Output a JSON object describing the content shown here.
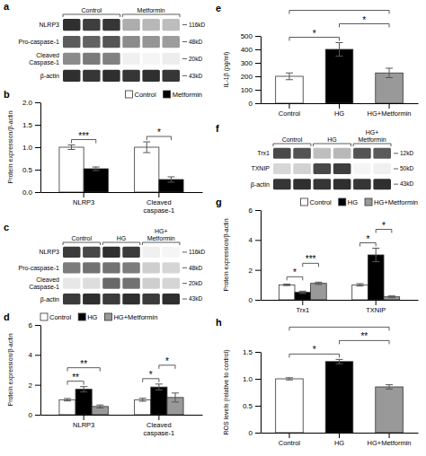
{
  "chart_data": [
    {
      "type": "heatmap",
      "title": "a",
      "groups": [
        {
          "name": "Control",
          "size": 3
        },
        {
          "name": "Metformin",
          "size": 3
        }
      ],
      "rows": [
        "NLRP3",
        "Pro-caspase-1",
        "Cleaved\nCaspase-1",
        "β-actin"
      ],
      "kd_labels": [
        "116kD",
        "48kD",
        "20kD",
        "43kD"
      ],
      "cells": [
        [
          0.82,
          0.78,
          0.8,
          0.45,
          0.42,
          0.4
        ],
        [
          0.7,
          0.68,
          0.72,
          0.55,
          0.52,
          0.5
        ],
        [
          0.55,
          0.6,
          0.58,
          0.18,
          0.15,
          0.2
        ],
        [
          0.82,
          0.8,
          0.82,
          0.8,
          0.82,
          0.8
        ]
      ]
    },
    {
      "type": "bar",
      "title": "b",
      "categories": [
        "NLRP3",
        "Cleaved\ncaspase-1"
      ],
      "series": [
        {
          "name": "Control",
          "color": "#FFFFFF",
          "values": [
            1.0,
            1.0
          ],
          "errors": [
            0.05,
            0.12
          ]
        },
        {
          "name": "Metformin",
          "color": "#000000",
          "values": [
            0.52,
            0.28
          ],
          "errors": [
            0.04,
            0.06
          ]
        }
      ],
      "ylabel": "Protein expression/β-actin",
      "ylim": [
        0,
        2.0
      ],
      "yticks": [
        {
          "value": 0,
          "label": "0.0"
        },
        0.5,
        {
          "value": 1,
          "label": "1.0"
        },
        1.5,
        {
          "value": 2,
          "label": "2.0"
        }
      ],
      "legend": "upper right",
      "annotations": [
        {
          "text": "***",
          "category": "NLRP3",
          "between": [
            "Control",
            "Metformin"
          ]
        },
        {
          "text": "*",
          "category": "Cleaved\ncaspase-1",
          "between": [
            "Control",
            "Metformin"
          ]
        }
      ]
    },
    {
      "type": "heatmap",
      "title": "c",
      "groups": [
        {
          "name": "Control",
          "size": 2
        },
        {
          "name": "HG",
          "size": 2
        },
        {
          "name": "HG+\nMetformin",
          "size": 2
        }
      ],
      "rows": [
        "NLRP3",
        "Pro-caspase-1",
        "Cleaved\nCaspase-1",
        "β-actin"
      ],
      "kd_labels": [
        "116kD",
        "48kD",
        "20kD",
        "43kD"
      ],
      "cells": [
        [
          0.8,
          0.78,
          0.82,
          0.8,
          0.42,
          0.4
        ],
        [
          0.68,
          0.7,
          0.7,
          0.68,
          0.52,
          0.5
        ],
        [
          0.45,
          0.48,
          0.72,
          0.7,
          0.52,
          0.5
        ],
        [
          0.8,
          0.82,
          0.8,
          0.82,
          0.8,
          0.82
        ]
      ]
    },
    {
      "type": "bar",
      "title": "d",
      "categories": [
        "NLRP3",
        "Cleaved\ncaspase-1"
      ],
      "series": [
        {
          "name": "Control",
          "color": "#FFFFFF",
          "values": [
            1.0,
            1.0
          ],
          "errors": [
            0.08,
            0.1
          ]
        },
        {
          "name": "HG",
          "color": "#000000",
          "values": [
            1.7,
            1.85
          ],
          "errors": [
            0.18,
            0.2
          ]
        },
        {
          "name": "HG+Metformin",
          "color": "#999999",
          "values": [
            0.55,
            1.15
          ],
          "errors": [
            0.1,
            0.3
          ]
        }
      ],
      "ylabel": "Protein expression/β-actin",
      "ylim": [
        0,
        6
      ],
      "yticks": [
        0,
        2,
        4,
        6
      ],
      "legend": "upper left",
      "annotations": [
        {
          "text": "**",
          "category": "NLRP3",
          "between": [
            "Control",
            "HG"
          ]
        },
        {
          "text": "**",
          "category": "NLRP3",
          "between": [
            "Control",
            "HG+Metformin"
          ]
        },
        {
          "text": "*",
          "category": "Cleaved\ncaspase-1",
          "between": [
            "Control",
            "HG"
          ]
        },
        {
          "text": "*",
          "category": "Cleaved\ncaspase-1",
          "between": [
            "HG",
            "HG+Metformin"
          ]
        }
      ]
    },
    {
      "type": "bar",
      "title": "e",
      "categories": [
        "Control",
        "HG",
        "HG+Metformin"
      ],
      "values": [
        200,
        400,
        225
      ],
      "errors": [
        25,
        50,
        35
      ],
      "colors": [
        "white",
        "black",
        "#999999"
      ],
      "ylabel": "IL-1β (pg/ml)",
      "ylim": [
        0,
        500
      ],
      "yticks": [
        0,
        100,
        200,
        300,
        400,
        500
      ],
      "annotations": [
        {
          "text": "*",
          "between": [
            "Control",
            "HG"
          ]
        },
        {
          "text": "*",
          "between": [
            "HG",
            "HG+Metformin"
          ]
        },
        {
          "between": [
            "Control",
            "HG+Metformin"
          ]
        }
      ]
    },
    {
      "type": "heatmap",
      "title": "f",
      "groups": [
        {
          "name": "Control",
          "size": 2
        },
        {
          "name": "HG",
          "size": 2
        },
        {
          "name": "HG+\nMetformin",
          "size": 2
        }
      ],
      "rows": [
        "Trx1",
        "TXNIP",
        "β-actin"
      ],
      "kd_labels": [
        "12kD",
        "50kD",
        "43kD"
      ],
      "cells": [
        [
          0.75,
          0.72,
          0.38,
          0.4,
          0.72,
          0.7
        ],
        [
          0.28,
          0.3,
          0.75,
          0.78,
          0.12,
          0.15
        ],
        [
          0.8,
          0.82,
          0.8,
          0.82,
          0.8,
          0.82
        ]
      ]
    },
    {
      "type": "bar",
      "title": "g",
      "categories": [
        "Trx1",
        "TXNIP"
      ],
      "series": [
        {
          "name": "Control",
          "color": "#FFFFFF",
          "values": [
            1.0,
            1.0
          ],
          "errors": [
            0.05,
            0.08
          ]
        },
        {
          "name": "HG",
          "color": "#000000",
          "values": [
            0.5,
            3.0
          ],
          "errors": [
            0.08,
            0.45
          ]
        },
        {
          "name": "HG+Metformin",
          "color": "#999999",
          "values": [
            1.1,
            0.2
          ],
          "errors": [
            0.08,
            0.06
          ]
        }
      ],
      "ylabel": "Protein expression/β-actin",
      "ylim": [
        0,
        6
      ],
      "yticks": [
        0,
        2,
        4,
        6
      ],
      "legend": "upper right",
      "annotations": [
        {
          "text": "*",
          "category": "Trx1",
          "between": [
            "Control",
            "HG"
          ]
        },
        {
          "text": "***",
          "category": "Trx1",
          "between": [
            "HG",
            "HG+Metformin"
          ]
        },
        {
          "text": "*",
          "category": "TXNIP",
          "between": [
            "Control",
            "HG"
          ]
        },
        {
          "text": "*",
          "category": "TXNIP",
          "between": [
            "HG",
            "HG+Metformin"
          ]
        }
      ]
    },
    {
      "type": "bar",
      "title": "h",
      "categories": [
        "Control",
        "HG",
        "HG+Metformin"
      ],
      "values": [
        1.0,
        1.32,
        0.85
      ],
      "errors": [
        0.02,
        0.04,
        0.04
      ],
      "colors": [
        "white",
        "black",
        "#999999"
      ],
      "ylabel": "ROS levels (relative to control)",
      "ylim": [
        0,
        1.5
      ],
      "yticks": [
        0,
        0.5,
        {
          "value": 1,
          "label": "1.0"
        },
        1.5
      ],
      "annotations": [
        {
          "text": "*",
          "between": [
            "Control",
            "HG"
          ]
        },
        {
          "text": "**",
          "between": [
            "HG",
            "HG+Metformin"
          ]
        },
        {
          "between": [
            "Control",
            "HG+Metformin"
          ]
        }
      ]
    }
  ]
}
